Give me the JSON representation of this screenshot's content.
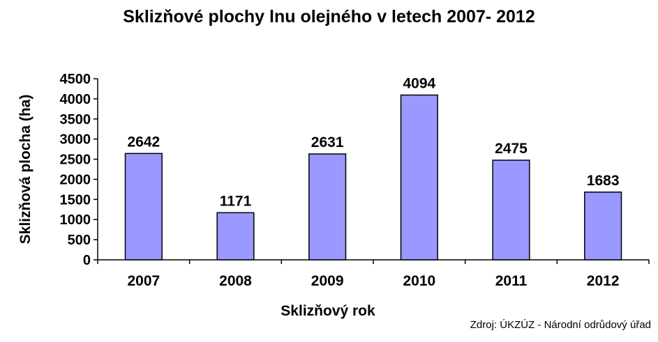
{
  "chart_data": {
    "type": "bar",
    "title": "Sklizňové plochy lnu olejného v letech 2007- 2012",
    "xlabel": "Sklizňový rok",
    "ylabel": "Sklizňová plocha (ha)",
    "categories": [
      "2007",
      "2008",
      "2009",
      "2010",
      "2011",
      "2012"
    ],
    "values": [
      2642,
      1171,
      2631,
      4094,
      2475,
      1683
    ],
    "ylim": [
      0,
      4500
    ],
    "yticks": [
      0,
      500,
      1000,
      1500,
      2000,
      2500,
      3000,
      3500,
      4000,
      4500
    ],
    "grid": false,
    "legend": "none",
    "bar_color": "#9999ff",
    "bar_edge_color": "#000000"
  },
  "source": "Zdroj: ÚKZÚZ - Národní   odrůdový úřad"
}
